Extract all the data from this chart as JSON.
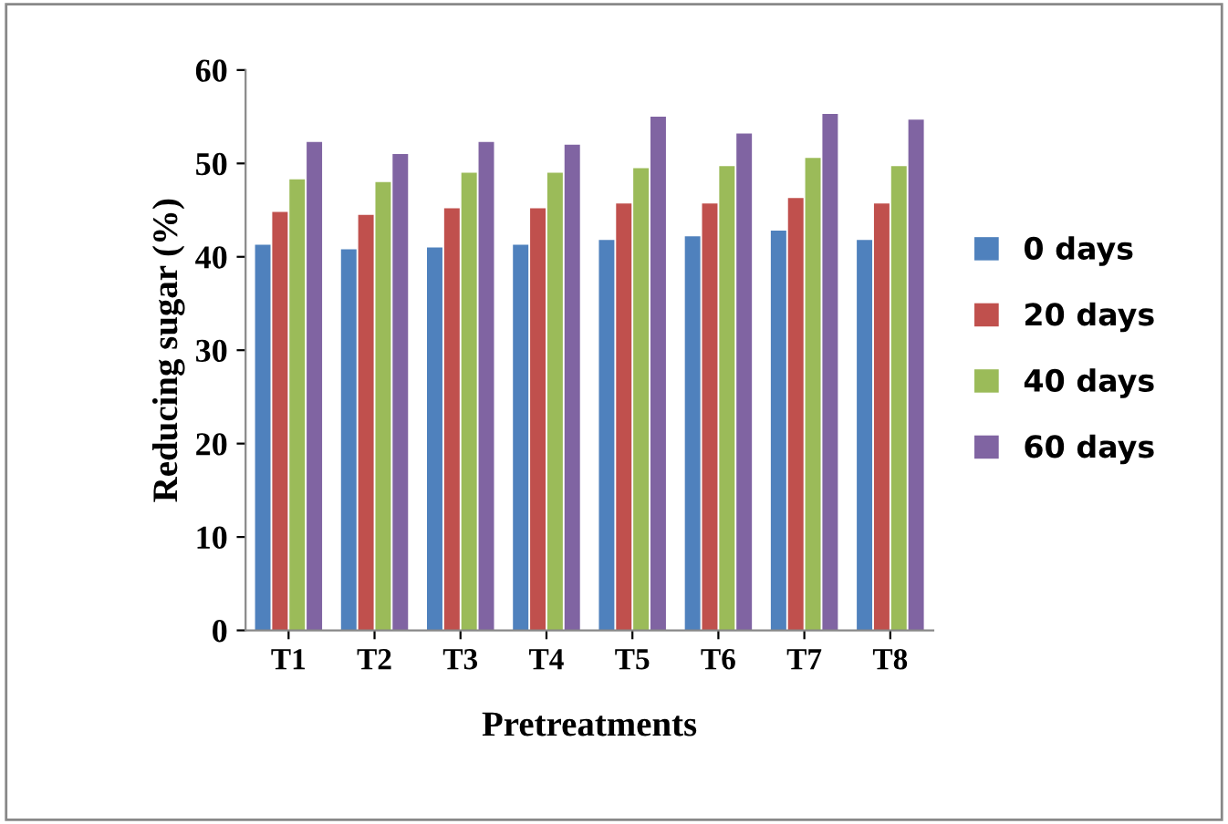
{
  "chart_data": {
    "type": "bar",
    "xlabel": "Pretreatments",
    "ylabel": "Reducing sugar (%)",
    "categories": [
      "T1",
      "T2",
      "T3",
      "T4",
      "T5",
      "T6",
      "T7",
      "T8"
    ],
    "series": [
      {
        "name": "0 days",
        "color": "#4f81bd",
        "values": [
          41.3,
          40.8,
          41.0,
          41.3,
          41.8,
          42.2,
          42.8,
          41.8
        ]
      },
      {
        "name": "20 days",
        "color": "#c0504d",
        "values": [
          44.8,
          44.5,
          45.2,
          45.2,
          45.7,
          45.7,
          46.3,
          45.7
        ]
      },
      {
        "name": "40 days",
        "color": "#9bbb59",
        "values": [
          48.3,
          48.0,
          49.0,
          49.0,
          49.5,
          49.7,
          50.6,
          49.7
        ]
      },
      {
        "name": "60 days",
        "color": "#8064a2",
        "values": [
          52.3,
          51.0,
          52.3,
          52.0,
          55.0,
          53.2,
          55.3,
          54.7
        ]
      }
    ],
    "ylim": [
      0,
      60
    ],
    "yticks": [
      0,
      10,
      20,
      30,
      40,
      50,
      60
    ],
    "legend": "right",
    "grid": false
  }
}
